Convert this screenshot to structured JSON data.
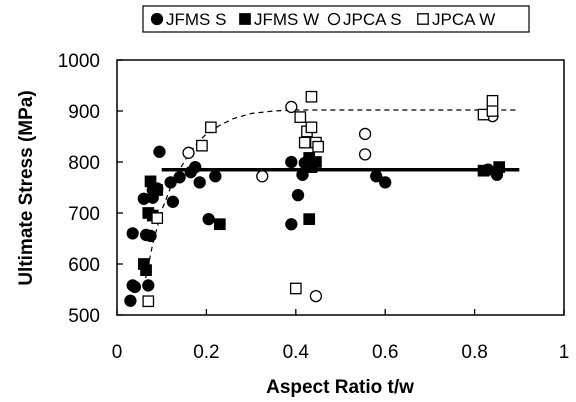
{
  "chart_data": {
    "type": "scatter",
    "title": "",
    "xlabel": "Aspect Ratio t/w",
    "ylabel": "Ultimate Stress (MPa)",
    "xlim": [
      0,
      1
    ],
    "ylim": [
      500,
      1000
    ],
    "x_ticks": [
      0,
      0.2,
      0.4,
      0.6,
      0.8,
      1
    ],
    "x_tick_labels": [
      "0",
      "0.2",
      "0.4",
      "0.6",
      "0.8",
      "1"
    ],
    "y_ticks": [
      500,
      600,
      700,
      800,
      900,
      1000
    ],
    "y_tick_labels": [
      "500",
      "600",
      "700",
      "800",
      "900",
      "1000"
    ],
    "grid": false,
    "legend_position": "top",
    "series": [
      {
        "name": "JFMS S",
        "marker": "filled-circle",
        "points": [
          [
            0.03,
            528
          ],
          [
            0.035,
            558
          ],
          [
            0.035,
            660
          ],
          [
            0.04,
            555
          ],
          [
            0.06,
            728
          ],
          [
            0.065,
            657
          ],
          [
            0.07,
            558
          ],
          [
            0.075,
            655
          ],
          [
            0.08,
            730
          ],
          [
            0.08,
            745
          ],
          [
            0.09,
            748
          ],
          [
            0.095,
            820
          ],
          [
            0.12,
            760
          ],
          [
            0.125,
            722
          ],
          [
            0.14,
            770
          ],
          [
            0.165,
            780
          ],
          [
            0.175,
            790
          ],
          [
            0.185,
            760
          ],
          [
            0.205,
            688
          ],
          [
            0.22,
            772
          ],
          [
            0.39,
            800
          ],
          [
            0.39,
            678
          ],
          [
            0.405,
            735
          ],
          [
            0.415,
            775
          ],
          [
            0.42,
            798
          ],
          [
            0.43,
            795
          ],
          [
            0.58,
            772
          ],
          [
            0.6,
            760
          ],
          [
            0.83,
            785
          ],
          [
            0.85,
            775
          ]
        ]
      },
      {
        "name": "JFMS W",
        "marker": "filled-square",
        "points": [
          [
            0.06,
            600
          ],
          [
            0.065,
            588
          ],
          [
            0.07,
            700
          ],
          [
            0.075,
            762
          ],
          [
            0.08,
            695
          ],
          [
            0.09,
            745
          ],
          [
            0.23,
            678
          ],
          [
            0.43,
            808
          ],
          [
            0.43,
            688
          ],
          [
            0.435,
            790
          ],
          [
            0.445,
            800
          ],
          [
            0.82,
            783
          ],
          [
            0.855,
            790
          ]
        ]
      },
      {
        "name": "JPCA S",
        "marker": "open-circle",
        "points": [
          [
            0.16,
            818
          ],
          [
            0.325,
            772
          ],
          [
            0.39,
            908
          ],
          [
            0.445,
            537
          ],
          [
            0.555,
            855
          ],
          [
            0.555,
            815
          ],
          [
            0.84,
            890
          ]
        ]
      },
      {
        "name": "JPCA W",
        "marker": "open-square",
        "points": [
          [
            0.07,
            527
          ],
          [
            0.09,
            690
          ],
          [
            0.19,
            832
          ],
          [
            0.21,
            868
          ],
          [
            0.4,
            552
          ],
          [
            0.41,
            888
          ],
          [
            0.42,
            838
          ],
          [
            0.425,
            860
          ],
          [
            0.435,
            928
          ],
          [
            0.435,
            868
          ],
          [
            0.445,
            838
          ],
          [
            0.45,
            830
          ],
          [
            0.82,
            893
          ],
          [
            0.84,
            900
          ],
          [
            0.84,
            920
          ]
        ]
      }
    ],
    "fit_lines": [
      {
        "style": "solid-thick",
        "points": [
          [
            0.1,
            785
          ],
          [
            0.9,
            785
          ]
        ]
      },
      {
        "style": "dashed",
        "points": [
          [
            0.06,
            555
          ],
          [
            0.08,
            640
          ],
          [
            0.1,
            705
          ],
          [
            0.12,
            750
          ],
          [
            0.14,
            785
          ],
          [
            0.16,
            815
          ],
          [
            0.18,
            838
          ],
          [
            0.2,
            855
          ],
          [
            0.23,
            872
          ],
          [
            0.26,
            885
          ],
          [
            0.3,
            895
          ],
          [
            0.35,
            900
          ],
          [
            0.4,
            902
          ],
          [
            0.5,
            902
          ],
          [
            0.6,
            902
          ],
          [
            0.7,
            902
          ],
          [
            0.8,
            902
          ],
          [
            0.9,
            902
          ]
        ]
      }
    ]
  }
}
